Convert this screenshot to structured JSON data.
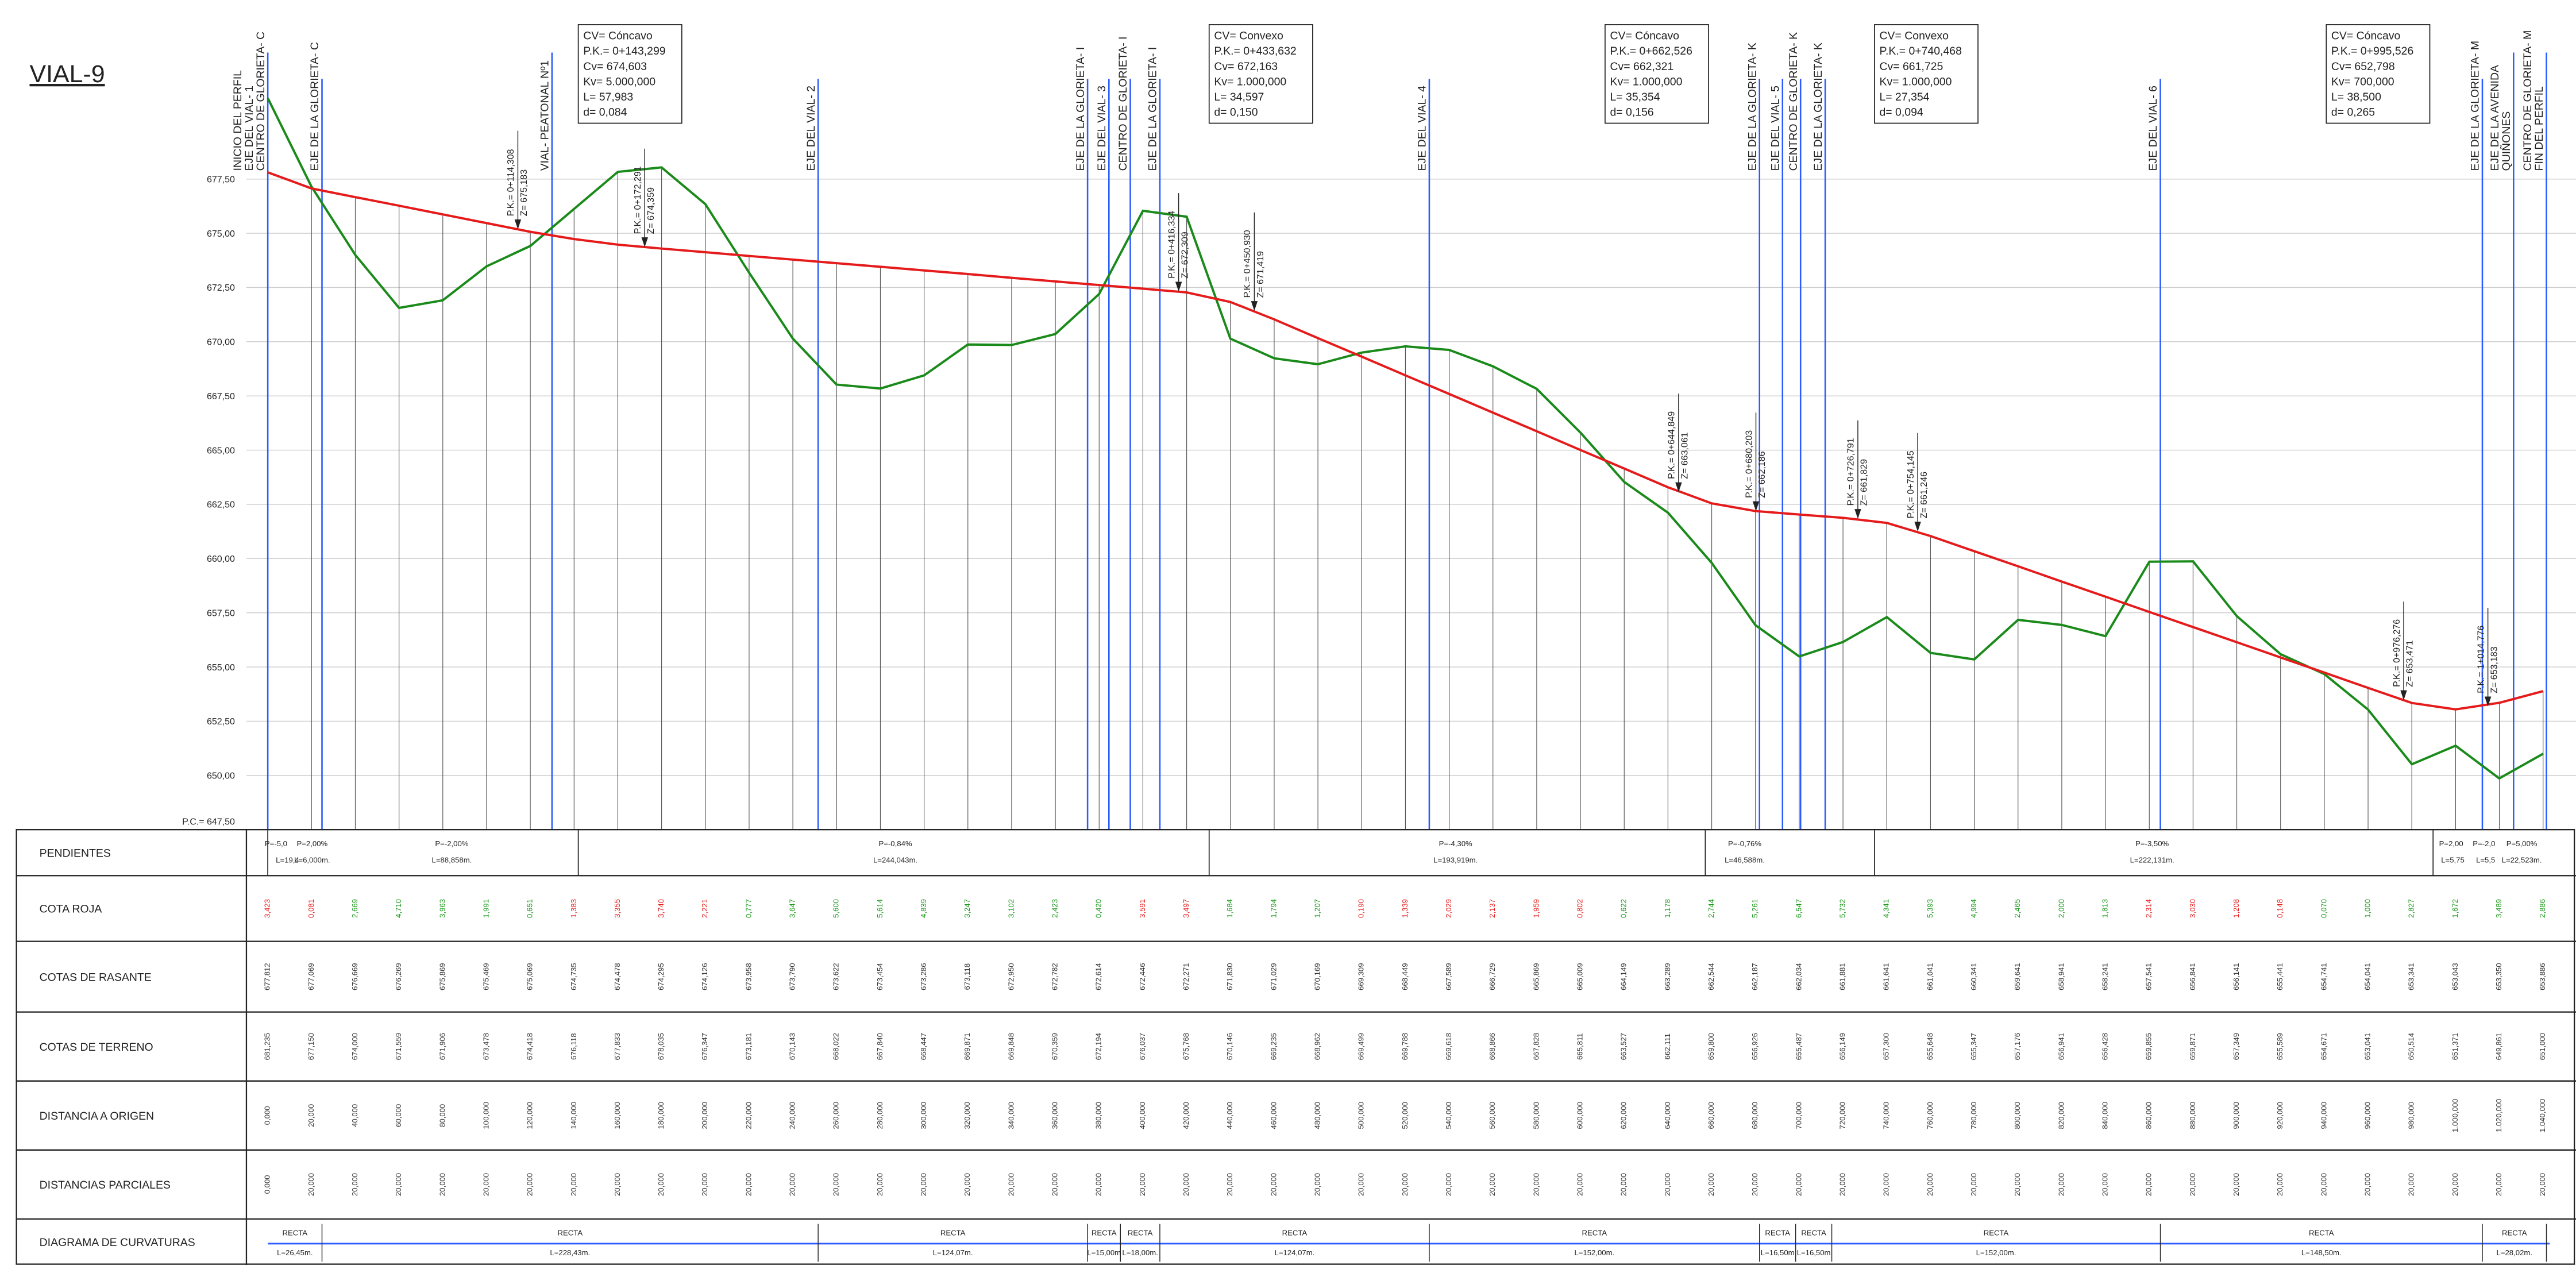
{
  "title": "VIAL-9",
  "axis": {
    "ticks": [
      "677,50",
      "675,00",
      "672,50",
      "670,00",
      "667,50",
      "665,00",
      "662,50",
      "660,00",
      "657,50",
      "655,00",
      "652,50",
      "650,00"
    ],
    "datum": "P.C.= 647,50"
  },
  "markers": [
    [
      "INICIO DEL PERFIL",
      "EJE DEL VIAL- 1",
      "CENTRO DE GLORIETA- C"
    ],
    [
      "EJE DE LA GLORIETA- C"
    ],
    [
      "VIAL- PEATONAL Nº1"
    ],
    [
      "EJE DEL VIAL- 2"
    ],
    [
      "EJE DE LA GLORIETA- I"
    ],
    [
      "EJE DEL VIAL- 3"
    ],
    [
      "CENTRO DE GLORIETA- I"
    ],
    [
      "EJE DE LA GLORIETA- I"
    ],
    [
      "EJE DEL VIAL- 4"
    ],
    [
      "EJE DE LA GLORIETA- K"
    ],
    [
      "EJE DEL VIAL- 5"
    ],
    [
      "CENTRO DE GLORIETA- K"
    ],
    [
      "EJE DE LA GLORIETA- K"
    ],
    [
      "EJE DEL VIAL- 6"
    ],
    [
      "EJE DE LA GLORIETA- M"
    ],
    [
      "EJE DE LA AVENIDA",
      "QUIÑONES"
    ],
    [
      "CENTRO DE GLORIETA- M",
      "FIN DEL PERFIL"
    ]
  ],
  "curves": [
    [
      "CV= Cóncavo",
      "P.K.= 0+143,299",
      "Cv= 674,603",
      "Kv= 5.000,000",
      "L= 57,983",
      "d= 0,084"
    ],
    [
      "CV= Convexo",
      "P.K.= 0+433,632",
      "Cv= 672,163",
      "Kv= 1.000,000",
      "L= 34,597",
      "d= 0,150"
    ],
    [
      "CV= Cóncavo",
      "P.K.= 0+662,526",
      "Cv= 662,321",
      "Kv= 1.000,000",
      "L= 35,354",
      "d= 0,156"
    ],
    [
      "CV= Convexo",
      "P.K.= 0+740,468",
      "Cv= 661,725",
      "Kv= 1.000,000",
      "L= 27,354",
      "d= 0,094"
    ],
    [
      "CV= Cóncavo",
      "P.K.= 0+995,526",
      "Cv= 652,798",
      "Kv= 700,000",
      "L= 38,500",
      "d= 0,265"
    ]
  ],
  "points": [
    [
      "P.K.= 0+114,308",
      "Z= 675,183"
    ],
    [
      "P.K.= 0+172,291",
      "Z= 674,359"
    ],
    [
      "P.K.= 0+416,334",
      "Z= 672,309"
    ],
    [
      "P.K.= 0+450,930",
      "Z= 671,419"
    ],
    [
      "P.K.= 0+644,849",
      "Z= 663,061"
    ],
    [
      "P.K.= 0+680,203",
      "Z= 662,186"
    ],
    [
      "P.K.= 0+726,791",
      "Z= 661,829"
    ],
    [
      "P.K.= 0+754,145",
      "Z= 661,246"
    ],
    [
      "P.K.= 0+976,276",
      "Z= 653,471"
    ],
    [
      "P.K.= 1+014,776",
      "Z= 653,183"
    ]
  ],
  "rows": [
    "PENDIENTES",
    "COTA ROJA",
    "COTAS DE RASANTE",
    "COTAS DE TERRENO",
    "DISTANCIA A ORIGEN",
    "DISTANCIAS PARCIALES",
    "DIAGRAMA DE CURVATURAS"
  ],
  "slopes": [
    [
      "P=-5,0",
      "L=19,4"
    ],
    [
      "P=2,00%",
      "L=6,000m."
    ],
    [
      "P=-2,00%",
      "L=88,858m."
    ],
    [
      "P=-0,84%",
      "L=244,043m."
    ],
    [
      "P=-4,30%",
      "L=193,919m."
    ],
    [
      "P=-0,76%",
      "L=46,588m."
    ],
    [
      "P=-3,50%",
      "L=222,131m."
    ],
    [
      "P=2,00",
      "L=5,75"
    ],
    [
      "P=-2,0",
      "L=5,5"
    ],
    [
      "P=5,00%",
      "L=22,523m."
    ]
  ],
  "curvature": {
    "kind": "RECTA",
    "lengths": [
      "L=26,45m.",
      "L=228,43m.",
      "L=124,07m.",
      "L=15,00m",
      "L=18,00m.",
      "L=124,07m.",
      "L=152,00m.",
      "L=16,50m",
      "L=16,50m",
      "L=152,00m.",
      "L=148,50m.",
      "L=28,02m."
    ]
  },
  "profile": {
    "distance": [
      "0,000",
      "20,000",
      "40,000",
      "60,000",
      "80,000",
      "100,000",
      "120,000",
      "140,000",
      "160,000",
      "180,000",
      "200,000",
      "220,000",
      "240,000",
      "260,000",
      "280,000",
      "300,000",
      "320,000",
      "340,000",
      "360,000",
      "380,000",
      "400,000",
      "420,000",
      "440,000",
      "460,000",
      "480,000",
      "500,000",
      "520,000",
      "540,000",
      "560,000",
      "580,000",
      "600,000",
      "620,000",
      "640,000",
      "660,000",
      "680,000",
      "700,000",
      "720,000",
      "740,000",
      "760,000",
      "780,000",
      "800,000",
      "820,000",
      "840,000",
      "860,000",
      "880,000",
      "900,000",
      "920,000",
      "940,000",
      "960,000",
      "980,000",
      "1.000,000",
      "1.020,000",
      "1.040,000"
    ],
    "partial": [
      "0,000",
      "20,000",
      "20,000",
      "20,000",
      "20,000",
      "20,000",
      "20,000",
      "20,000",
      "20,000",
      "20,000",
      "20,000",
      "20,000",
      "20,000",
      "20,000",
      "20,000",
      "20,000",
      "20,000",
      "20,000",
      "20,000",
      "20,000",
      "20,000",
      "20,000",
      "20,000",
      "20,000",
      "20,000",
      "20,000",
      "20,000",
      "20,000",
      "20,000",
      "20,000",
      "20,000",
      "20,000",
      "20,000",
      "20,000",
      "20,000",
      "20,000",
      "20,000",
      "20,000",
      "20,000",
      "20,000",
      "20,000",
      "20,000",
      "20,000",
      "20,000",
      "20,000",
      "20,000",
      "20,000",
      "20,000",
      "20,000",
      "20,000",
      "20,000",
      "20,000",
      "20,000"
    ],
    "rasante": [
      "677,812",
      "677,069",
      "676,669",
      "676,269",
      "675,869",
      "675,469",
      "675,069",
      "674,735",
      "674,478",
      "674,295",
      "674,126",
      "673,958",
      "673,790",
      "673,622",
      "673,454",
      "673,286",
      "673,118",
      "672,950",
      "672,782",
      "672,614",
      "672,446",
      "672,271",
      "671,830",
      "671,029",
      "670,169",
      "669,309",
      "668,449",
      "667,589",
      "666,729",
      "665,869",
      "665,009",
      "664,149",
      "663,289",
      "662,544",
      "662,187",
      "662,034",
      "661,881",
      "661,641",
      "661,041",
      "660,341",
      "659,641",
      "658,941",
      "658,241",
      "657,541",
      "656,841",
      "656,141",
      "655,441",
      "654,741",
      "654,041",
      "653,341",
      "653,043",
      "653,350",
      "653,886"
    ],
    "terreno": [
      "681,235",
      "677,150",
      "674,000",
      "671,559",
      "671,906",
      "673,478",
      "674,418",
      "676,118",
      "677,833",
      "678,035",
      "676,347",
      "673,181",
      "670,143",
      "668,022",
      "667,840",
      "668,447",
      "669,871",
      "669,848",
      "670,359",
      "672,194",
      "676,037",
      "675,768",
      "670,146",
      "669,235",
      "668,962",
      "669,499",
      "669,788",
      "669,618",
      "668,866",
      "667,828",
      "665,811",
      "663,527",
      "662,111",
      "659,800",
      "656,926",
      "655,487",
      "656,149",
      "657,300",
      "655,648",
      "655,347",
      "657,176",
      "656,941",
      "656,428",
      "659,855",
      "659,871",
      "657,349",
      "655,589",
      "654,671",
      "653,041",
      "650,514",
      "651,371",
      "649,861",
      "651,000"
    ],
    "roja": [
      "3,423",
      "0,081",
      "2,669",
      "4,710",
      "3,963",
      "1,991",
      "0,651",
      "1,383",
      "3,355",
      "3,740",
      "2,221",
      "0,777",
      "3,647",
      "5,600",
      "5,614",
      "4,839",
      "3,247",
      "3,102",
      "2,423",
      "0,420",
      "3,591",
      "3,497",
      "1,684",
      "1,794",
      "1,207",
      "0,190",
      "1,339",
      "2,029",
      "2,137",
      "1,959",
      "0,802",
      "0,622",
      "1,178",
      "2,744",
      "5,261",
      "6,547",
      "5,732",
      "4,341",
      "5,393",
      "4,994",
      "2,465",
      "2,000",
      "1,813",
      "2,314",
      "3,030",
      "1,208",
      "0,148",
      "0,070",
      "1,000",
      "2,827",
      "1,672",
      "3,489",
      "2,886"
    ]
  }
}
